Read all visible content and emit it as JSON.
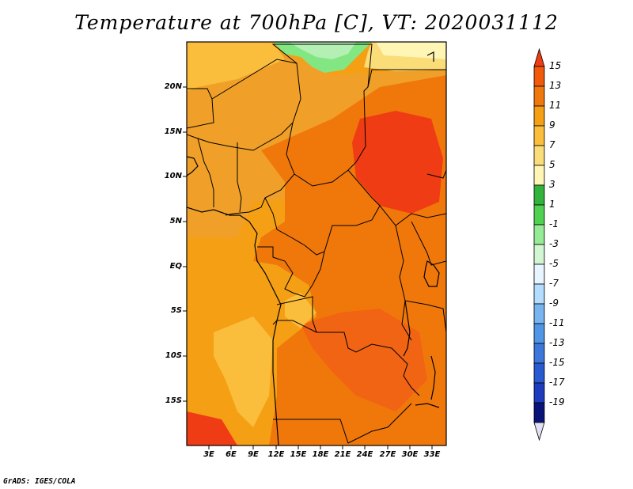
{
  "title": "Temperature at 700hPa [C], VT: 2020031112",
  "credit": "GrADS: IGES/COLA",
  "map": {
    "lat_labels": [
      "20N",
      "15N",
      "10N",
      "5N",
      "EQ",
      "5S",
      "10S",
      "15S"
    ],
    "lon_labels": [
      "3E",
      "6E",
      "9E",
      "12E",
      "15E",
      "18E",
      "21E",
      "24E",
      "27E",
      "30E",
      "33E"
    ]
  },
  "colorbar": {
    "labels": [
      "15",
      "13",
      "11",
      "9",
      "7",
      "5",
      "3",
      "1",
      "-1",
      "-3",
      "-5",
      "-7",
      "-9",
      "-11",
      "-13",
      "-15",
      "-17",
      "-19"
    ],
    "colors": [
      "#f03c14",
      "#f05a0a",
      "#f0780a",
      "#f5a014",
      "#fabe3c",
      "#fadc78",
      "#fff5b4",
      "#32b43c",
      "#50d250",
      "#96eb96",
      "#d2f5d2",
      "#e6f5ff",
      "#b4dcff",
      "#78b4f0",
      "#5096e6",
      "#3c78dc",
      "#285ad2",
      "#1e3cbe",
      "#0a1478",
      "#e1e1f5"
    ]
  }
}
